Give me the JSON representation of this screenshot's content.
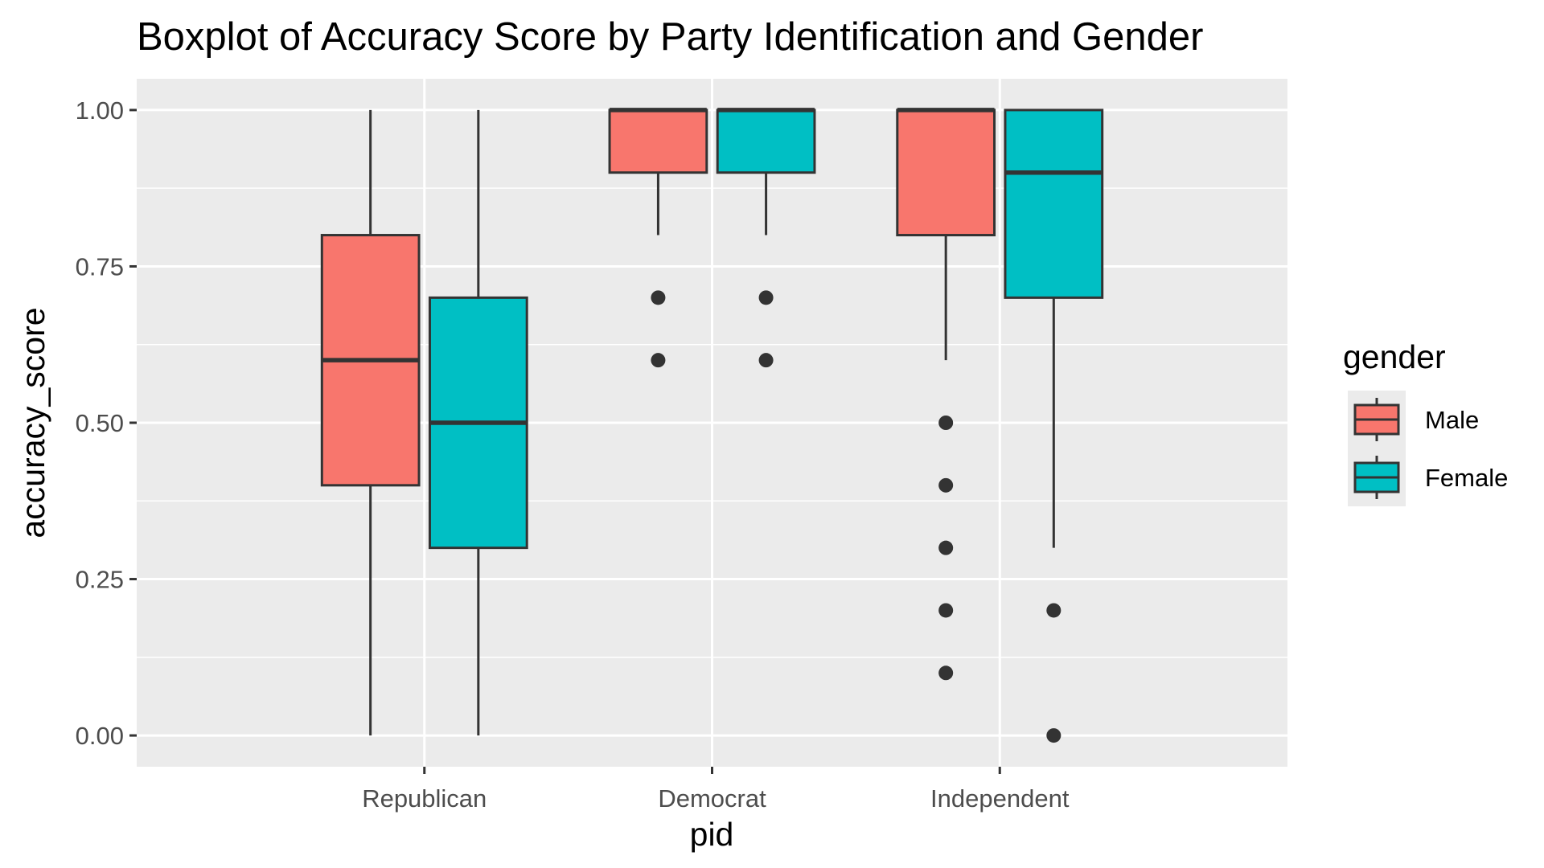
{
  "chart_data": {
    "type": "boxplot",
    "title": "Boxplot of Accuracy Score by Party Identification and Gender",
    "xlabel": "pid",
    "ylabel": "accuracy_score",
    "ylim": [
      -0.05,
      1.05
    ],
    "yticks": [
      0.0,
      0.25,
      0.5,
      0.75,
      1.0
    ],
    "ytick_labels": [
      "0.00",
      "0.25",
      "0.50",
      "0.75",
      "1.00"
    ],
    "grid": true,
    "categories": [
      "Republican",
      "Democrat",
      "Independent"
    ],
    "legend": {
      "title": "gender",
      "position": "right",
      "entries": [
        "Male",
        "Female"
      ]
    },
    "series": [
      {
        "name": "Male",
        "color": "#F8766D",
        "boxes": [
          {
            "whisker_low": 0.0,
            "q1": 0.4,
            "median": 0.6,
            "q3": 0.8,
            "whisker_high": 1.0,
            "outliers": []
          },
          {
            "whisker_low": 0.8,
            "q1": 0.9,
            "median": 1.0,
            "q3": 1.0,
            "whisker_high": 1.0,
            "outliers": [
              0.7,
              0.6
            ]
          },
          {
            "whisker_low": 0.6,
            "q1": 0.8,
            "median": 1.0,
            "q3": 1.0,
            "whisker_high": 1.0,
            "outliers": [
              0.5,
              0.4,
              0.3,
              0.2,
              0.1
            ]
          }
        ]
      },
      {
        "name": "Female",
        "color": "#00BFC4",
        "boxes": [
          {
            "whisker_low": 0.0,
            "q1": 0.3,
            "median": 0.5,
            "q3": 0.7,
            "whisker_high": 1.0,
            "outliers": []
          },
          {
            "whisker_low": 0.8,
            "q1": 0.9,
            "median": 1.0,
            "q3": 1.0,
            "whisker_high": 1.0,
            "outliers": [
              0.7,
              0.6
            ]
          },
          {
            "whisker_low": 0.3,
            "q1": 0.7,
            "median": 0.9,
            "q3": 1.0,
            "whisker_high": 1.0,
            "outliers": [
              0.2,
              0.0
            ]
          }
        ]
      }
    ],
    "colors": {
      "panel_background": "#EBEBEB",
      "grid": "#FFFFFF",
      "box_outline": "#333333"
    }
  }
}
